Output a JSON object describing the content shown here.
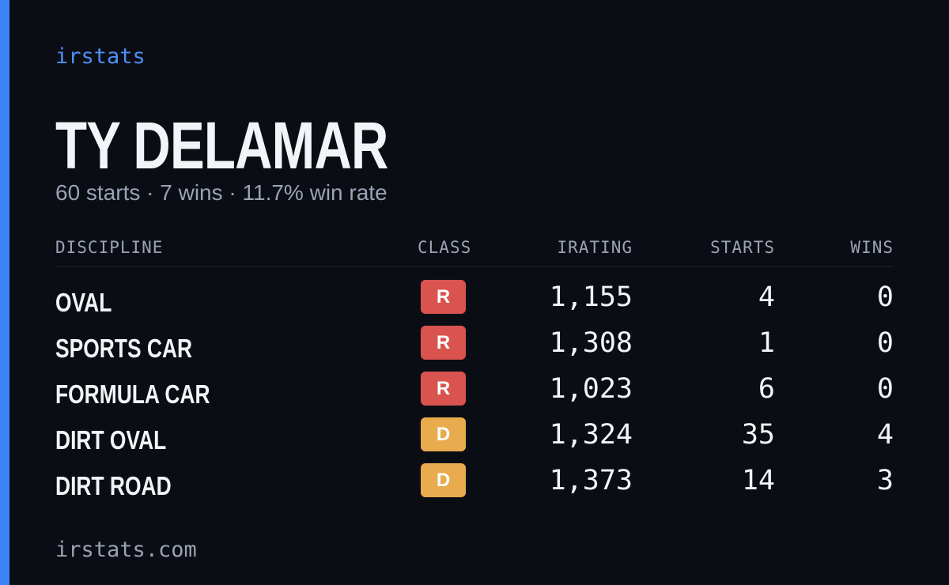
{
  "brand": "irstats",
  "header": {
    "name": "TY DELAMAR",
    "summary": "60 starts · 7 wins · 11.7% win rate"
  },
  "table": {
    "columns": [
      "DISCIPLINE",
      "CLASS",
      "IRATING",
      "STARTS",
      "WINS"
    ],
    "rows": [
      {
        "discipline": "OVAL",
        "class": "R",
        "class_color": "#d9534f",
        "irating": "1,155",
        "starts": 4,
        "wins": 0
      },
      {
        "discipline": "SPORTS CAR",
        "class": "R",
        "class_color": "#d9534f",
        "irating": "1,308",
        "starts": 1,
        "wins": 0
      },
      {
        "discipline": "FORMULA CAR",
        "class": "R",
        "class_color": "#d9534f",
        "irating": "1,023",
        "starts": 6,
        "wins": 0
      },
      {
        "discipline": "DIRT OVAL",
        "class": "D",
        "class_color": "#e8ab4d",
        "irating": "1,324",
        "starts": 35,
        "wins": 4
      },
      {
        "discipline": "DIRT ROAD",
        "class": "D",
        "class_color": "#e8ab4d",
        "irating": "1,373",
        "starts": 14,
        "wins": 3
      }
    ]
  },
  "footer": "irstats.com"
}
